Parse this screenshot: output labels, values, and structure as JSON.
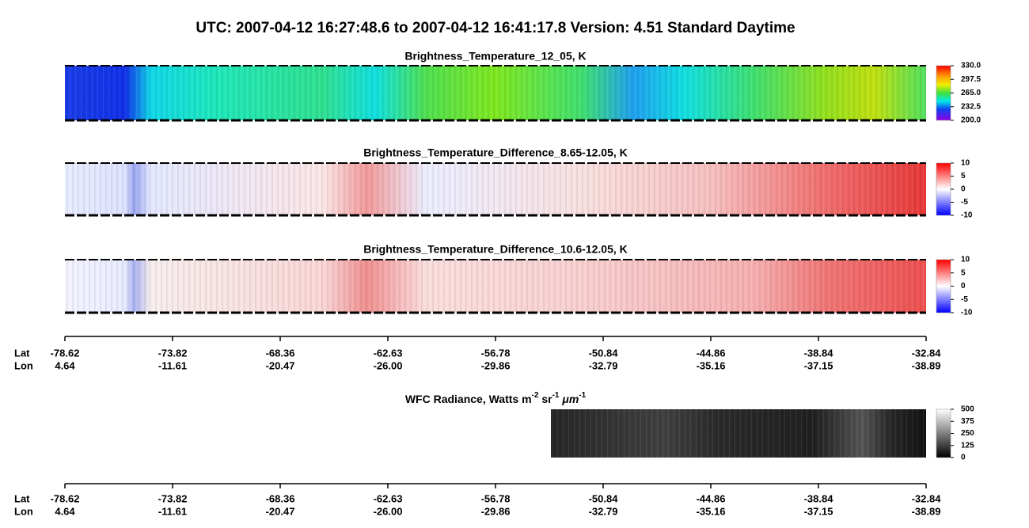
{
  "title": "UTC:  2007-04-12   16:27:48.6  to  2007-04-12   16:41:17.8    Version: 4.51  Standard Daytime",
  "panels": [
    {
      "title": "Brightness_Temperature_12_05, K",
      "colorbar": [
        "330.0",
        "297.5",
        "265.0",
        "232.5",
        "200.0"
      ]
    },
    {
      "title": "Brightness_Temperature_Difference_8.65-12.05, K",
      "colorbar": [
        "10",
        "5",
        "0",
        "-5",
        "-10"
      ]
    },
    {
      "title": "Brightness_Temperature_Difference_10.6-12.05, K",
      "colorbar": [
        "10",
        "5",
        "0",
        "-5",
        "-10"
      ]
    }
  ],
  "wfc": {
    "title_parts": [
      "WFC Radiance, Watts m",
      "-2",
      " sr",
      "-1",
      " μm",
      "-1"
    ],
    "colorbar": [
      "500",
      "375",
      "250",
      "125",
      "0"
    ]
  },
  "axes": [
    {
      "lat_label": "Lat",
      "lon_label": "Lon",
      "lat": [
        "-78.62",
        "-73.82",
        "-68.36",
        "-62.63",
        "-56.78",
        "-50.84",
        "-44.86",
        "-38.84",
        "-32.84"
      ],
      "lon": [
        "4.64",
        "-11.61",
        "-20.47",
        "-26.00",
        "-29.86",
        "-32.79",
        "-35.16",
        "-37.15",
        "-38.89"
      ]
    },
    {
      "lat_label": "Lat",
      "lon_label": "Lon",
      "lat": [
        "-78.62",
        "-73.82",
        "-68.36",
        "-62.63",
        "-56.78",
        "-50.84",
        "-44.86",
        "-38.84",
        "-32.84"
      ],
      "lon": [
        "4.64",
        "-11.61",
        "-20.47",
        "-26.00",
        "-29.86",
        "-32.79",
        "-35.16",
        "-37.15",
        "-38.89"
      ]
    }
  ]
}
